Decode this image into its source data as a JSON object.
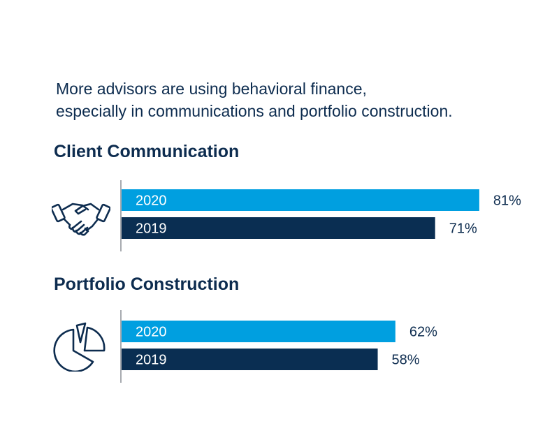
{
  "intro": {
    "line1": "More advisors are using behavioral finance,",
    "line2": "especially in communications and portfolio construction."
  },
  "colors": {
    "series_2020": "#009fe0",
    "series_2019": "#0a2e52",
    "text": "#0d2c4f",
    "axis": "#8a8f96"
  },
  "icons": [
    "handshake-icon",
    "pie-chart-icon"
  ],
  "chart_data": [
    {
      "type": "bar",
      "orientation": "horizontal",
      "title": "Client Communication",
      "categories": [
        "2020",
        "2019"
      ],
      "values": [
        81,
        71
      ],
      "value_labels": [
        "81%",
        "71%"
      ],
      "xlim": [
        0,
        100
      ]
    },
    {
      "type": "bar",
      "orientation": "horizontal",
      "title": "Portfolio Construction",
      "categories": [
        "2020",
        "2019"
      ],
      "values": [
        62,
        58
      ],
      "value_labels": [
        "62%",
        "58%"
      ],
      "xlim": [
        0,
        100
      ]
    }
  ]
}
